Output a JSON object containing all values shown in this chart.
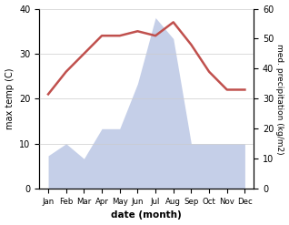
{
  "months": [
    "Jan",
    "Feb",
    "Mar",
    "Apr",
    "May",
    "Jun",
    "Jul",
    "Aug",
    "Sep",
    "Oct",
    "Nov",
    "Dec"
  ],
  "temperature": [
    21,
    26,
    30,
    34,
    34,
    35,
    34,
    37,
    32,
    26,
    22,
    22
  ],
  "precipitation": [
    11,
    15,
    10,
    20,
    20,
    35,
    57,
    50,
    15,
    15,
    15,
    15
  ],
  "temp_color": "#c0504d",
  "precip_fill_color": "#c5cfe8",
  "temp_ylim": [
    0,
    40
  ],
  "precip_ylim": [
    0,
    60
  ],
  "temp_yticks": [
    0,
    10,
    20,
    30,
    40
  ],
  "precip_yticks": [
    0,
    10,
    20,
    30,
    40,
    50,
    60
  ],
  "temp_ylabel": "max temp (C)",
  "precip_ylabel": "med. precipitation (kg/m2)",
  "xlabel": "date (month)",
  "background_color": "#ffffff",
  "grid_color": "#cccccc"
}
